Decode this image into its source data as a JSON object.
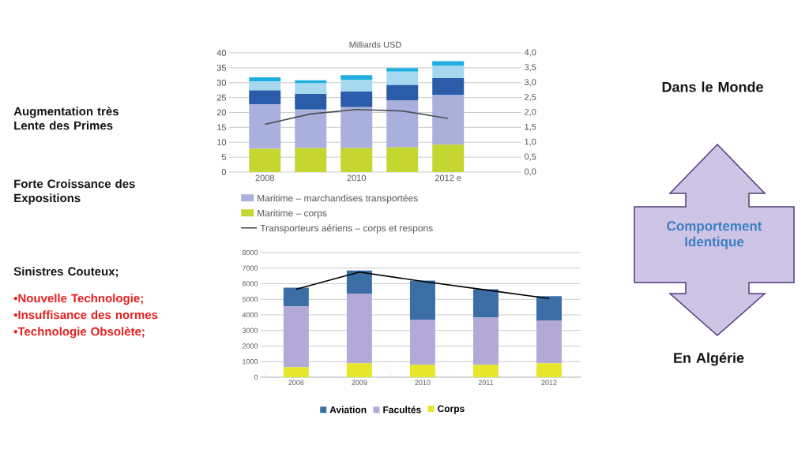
{
  "chart_data": [
    {
      "type": "bar",
      "title": "Milliards USD",
      "stacked": true,
      "grid": "y",
      "legend": "bottom",
      "categories": [
        "2008",
        null,
        "2010",
        null,
        "2012 e"
      ],
      "ylim": [
        0,
        40
      ],
      "yticks": [
        0,
        5,
        10,
        15,
        20,
        25,
        30,
        35,
        40
      ],
      "y2lim": [
        0,
        4
      ],
      "y2ticks": [
        {
          "value": 0,
          "label": "0,0"
        },
        {
          "value": 0.5,
          "label": "0,5"
        },
        {
          "value": 1,
          "label": "1,0"
        },
        {
          "value": 1.5,
          "label": "1,5"
        },
        {
          "value": 2,
          "label": "2,0"
        },
        {
          "value": 2.5,
          "label": "2,5"
        },
        {
          "value": 3,
          "label": "3,0"
        },
        {
          "value": 3.5,
          "label": "3,5"
        },
        {
          "value": 4,
          "label": "4,0"
        }
      ],
      "series": [
        {
          "name": "Maritime – corps",
          "color": "#c5d630",
          "values": [
            7.8,
            8.0,
            8.0,
            8.3,
            9.2
          ]
        },
        {
          "name": "Maritime – marchandises transportées",
          "color": "#aab0dc",
          "values": [
            15.0,
            13.0,
            13.8,
            15.7,
            16.6
          ]
        },
        {
          "color": "#2a5caa",
          "values": [
            4.6,
            5.2,
            5.2,
            5.2,
            5.7
          ]
        },
        {
          "color": "#a6d8f0",
          "values": [
            3.0,
            3.6,
            4.0,
            4.5,
            4.1
          ]
        },
        {
          "color": "#1eaee0",
          "values": [
            1.4,
            1.0,
            1.5,
            1.2,
            1.6
          ]
        },
        {
          "name": "Transporteurs aériens – corps et respons",
          "type": "line",
          "axis": "y2",
          "color": "#4a4f55",
          "values": [
            1.6,
            1.95,
            2.1,
            2.05,
            1.8
          ]
        }
      ]
    },
    {
      "type": "bar",
      "stacked": true,
      "grid": "y",
      "legend": "bottom",
      "categories": [
        "2008",
        "2009",
        "2010",
        "2011",
        "2012"
      ],
      "ylim": [
        0,
        8000
      ],
      "yticks": [
        0,
        1000,
        2000,
        3000,
        4000,
        5000,
        6000,
        7000,
        8000
      ],
      "series": [
        {
          "name": "Corps",
          "color": "#e6e62a",
          "values": [
            650,
            900,
            800,
            800,
            900
          ]
        },
        {
          "name": "Facultés",
          "color": "#b3a9d6",
          "values": [
            3900,
            4470,
            2900,
            3030,
            2750
          ]
        },
        {
          "name": "Aviation",
          "color": "#3a6ea5",
          "values": [
            1200,
            1480,
            2500,
            1820,
            1550
          ]
        },
        {
          "type": "line",
          "color": "#000000",
          "values": [
            5650,
            6750,
            6150,
            5600,
            5050
          ]
        }
      ]
    },
    {
      "type": "other",
      "annotations": [
        "Augmentation très Lente des Primes",
        "Forte Croissance des Expositions",
        "Sinistres Couteux;",
        "•Nouvelle Technologie;",
        "•Insuffisance des normes",
        "•Technologie Obsolète;",
        "Dans le Monde",
        "Comportement Identique",
        "En Algérie"
      ]
    }
  ]
}
